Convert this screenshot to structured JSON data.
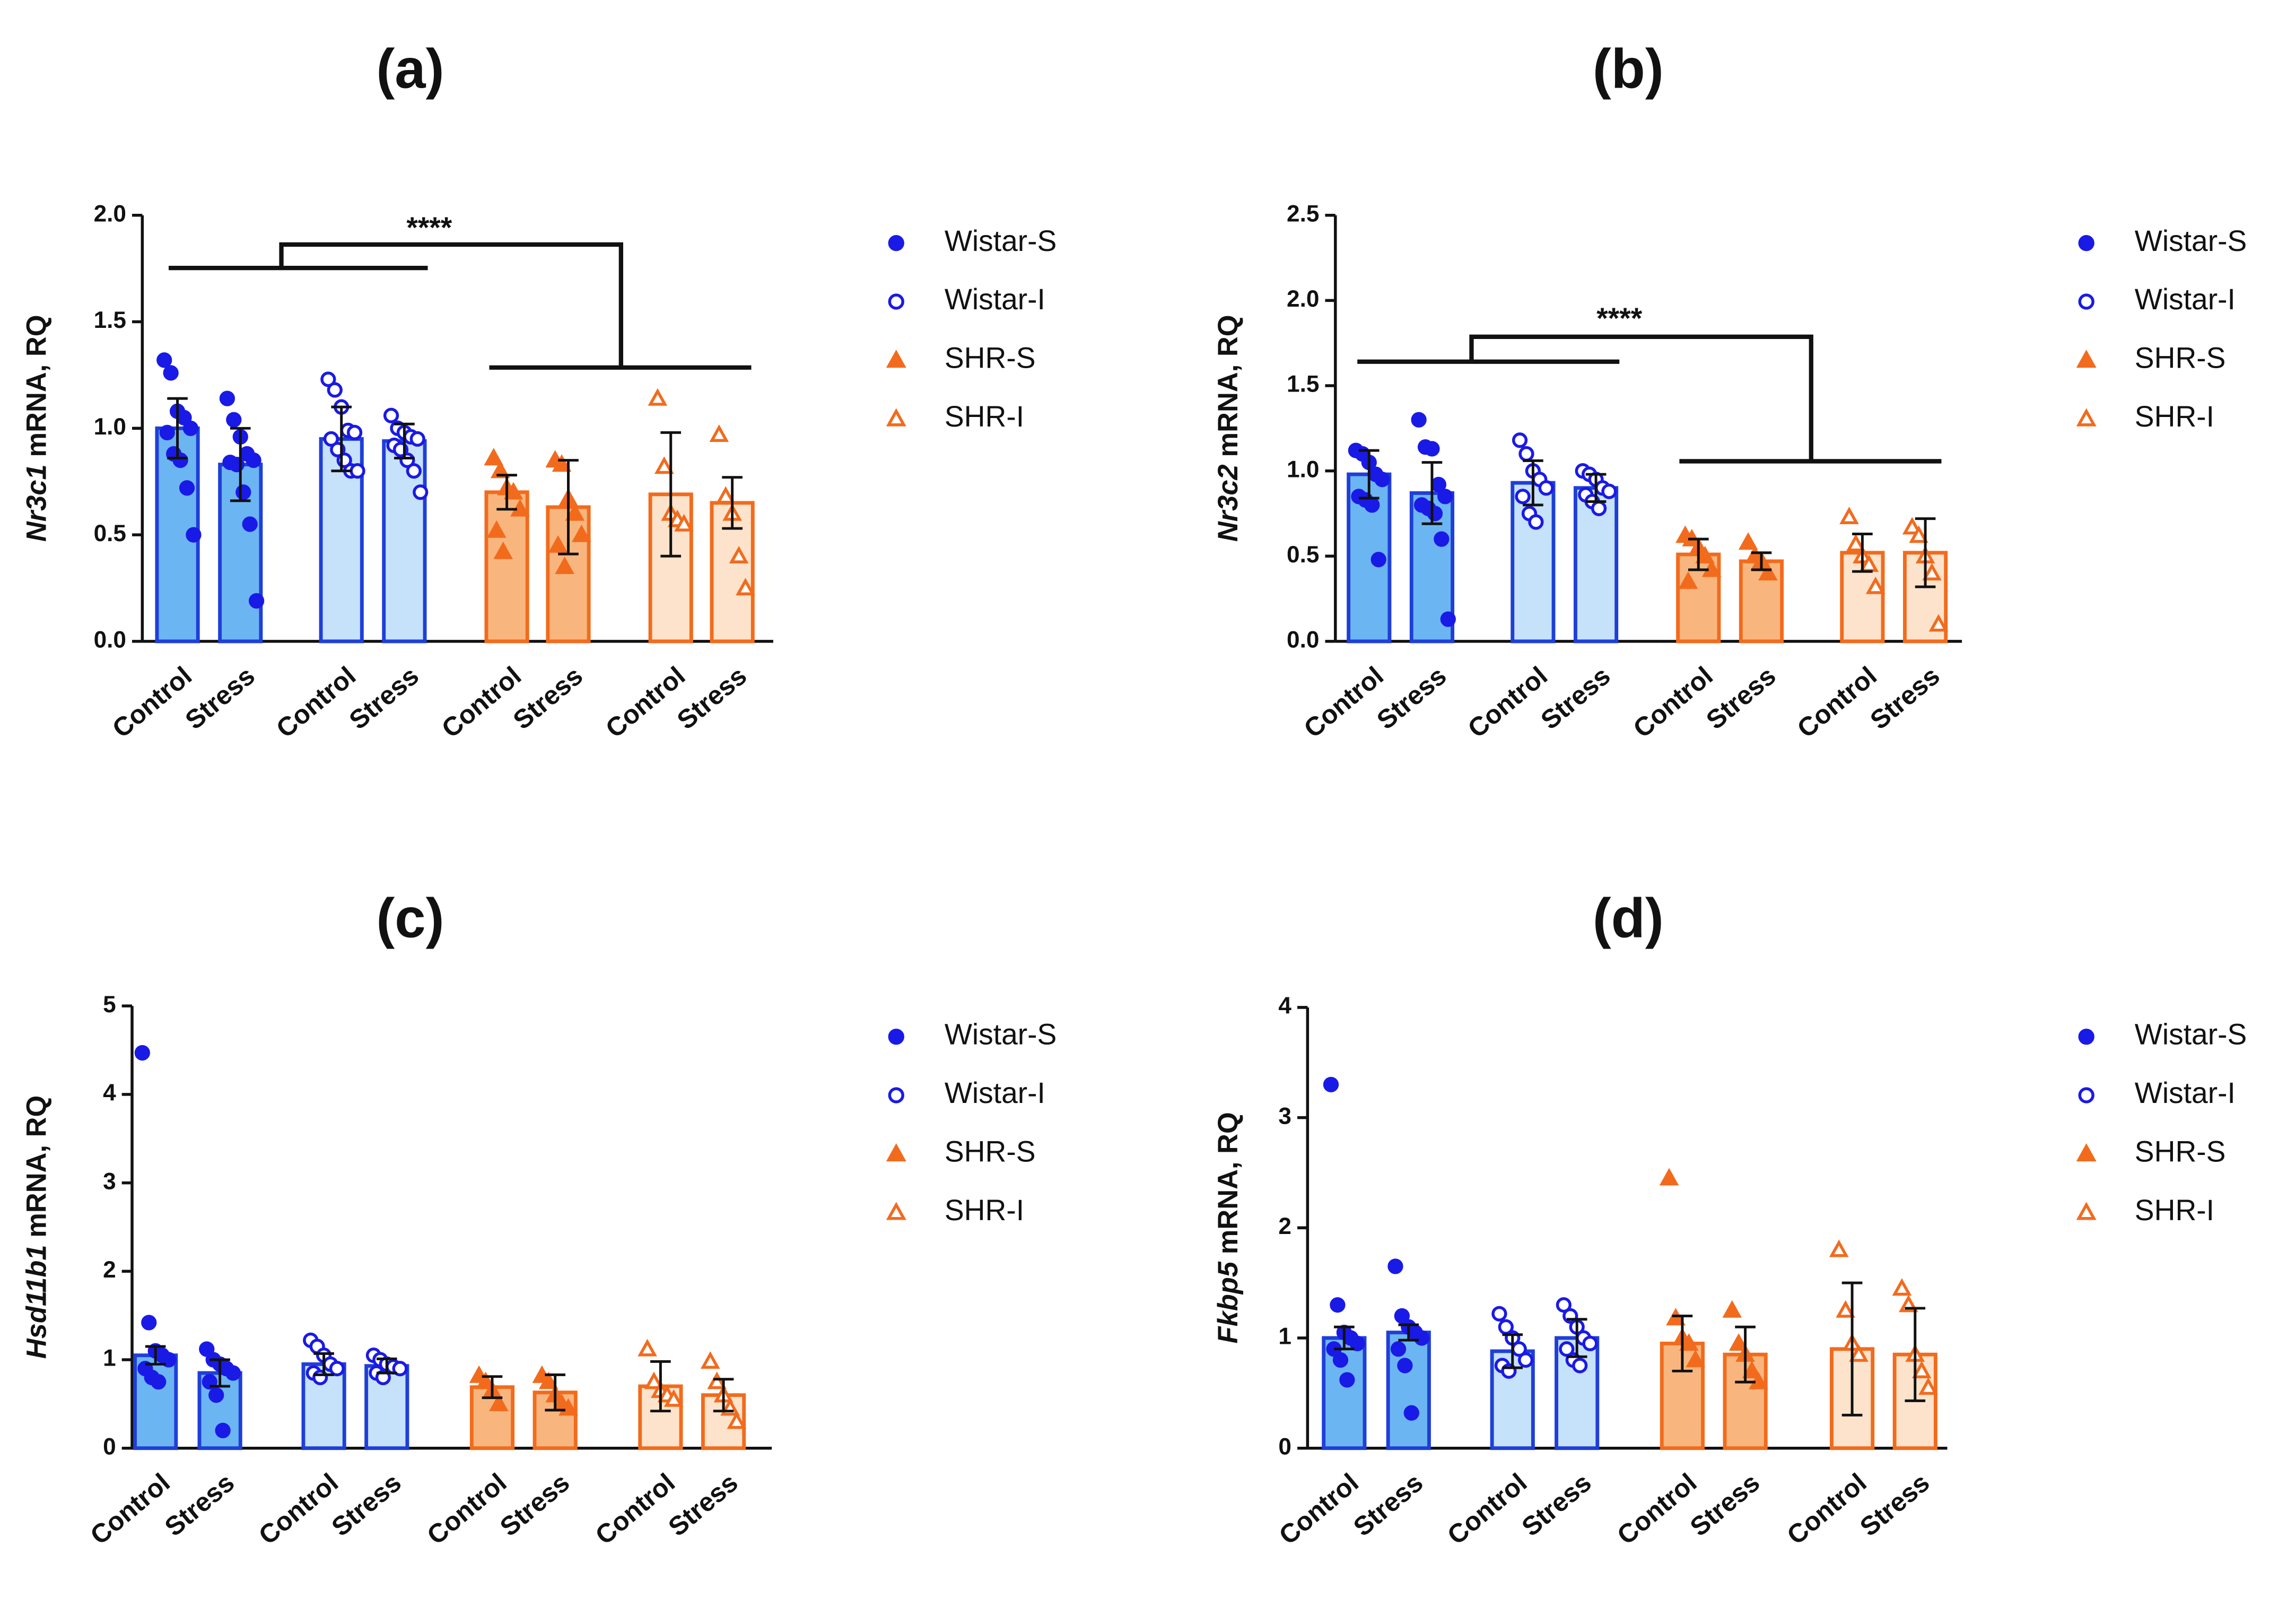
{
  "chart_data": [
    {
      "type": "bar",
      "title": "(a)",
      "ylabel": [
        "Nr3c1",
        "mRNA, RQ"
      ],
      "annotation": "****",
      "categories": [
        "Control",
        "Stress"
      ],
      "ylim": [
        0,
        2
      ],
      "yticks": [
        {
          "value": 0,
          "label": "0.0"
        },
        0.5,
        {
          "value": 1,
          "label": "1.0"
        },
        1.5,
        {
          "value": 2,
          "label": "2.0"
        }
      ],
      "series": [
        {
          "name": "Wistar-S",
          "color": "#1a1ae6",
          "fill": "#6cb5f3",
          "marker": "circle",
          "filled": true,
          "values": [
            1.0,
            0.83
          ],
          "errors": [
            0.14,
            0.17
          ],
          "points": [
            [
              1.32,
              1.26,
              1.08,
              1.05,
              1.0,
              0.98,
              0.88,
              0.85,
              0.72,
              0.5
            ],
            [
              1.14,
              1.04,
              0.96,
              0.88,
              0.85,
              0.84,
              0.83,
              0.7,
              0.55,
              0.19
            ]
          ]
        },
        {
          "name": "Wistar-I",
          "color": "#1a1ae6",
          "fill": "#c6e1fa",
          "marker": "circle",
          "filled": false,
          "values": [
            0.95,
            0.94
          ],
          "errors": [
            0.15,
            0.08
          ],
          "points": [
            [
              1.23,
              1.18,
              1.1,
              0.99,
              0.98,
              0.95,
              0.9,
              0.85,
              0.8,
              0.8
            ],
            [
              1.06,
              1.0,
              0.98,
              0.96,
              0.95,
              0.92,
              0.9,
              0.85,
              0.8,
              0.7
            ]
          ]
        },
        {
          "name": "SHR-S",
          "color": "#f26b1d",
          "fill": "#f8b67e",
          "marker": "triangle",
          "filled": true,
          "values": [
            0.7,
            0.63
          ],
          "errors": [
            0.08,
            0.22
          ],
          "points": [
            [
              0.86,
              0.8,
              0.72,
              0.7,
              0.62,
              0.52,
              0.42
            ],
            [
              0.85,
              0.83,
              0.67,
              0.6,
              0.5,
              0.45,
              0.35
            ]
          ]
        },
        {
          "name": "SHR-I",
          "color": "#f26b1d",
          "fill": "#fde3cb",
          "marker": "triangle",
          "filled": false,
          "values": [
            0.69,
            0.65
          ],
          "errors": [
            0.29,
            0.12
          ],
          "points": [
            [
              1.14,
              0.82,
              0.6,
              0.57,
              0.55
            ],
            [
              0.97,
              0.68,
              0.6,
              0.4,
              0.25
            ]
          ]
        }
      ]
    },
    {
      "type": "bar",
      "title": "(b)",
      "ylabel": [
        "Nr3c2",
        "mRNA, RQ"
      ],
      "annotation": "****",
      "categories": [
        "Control",
        "Stress"
      ],
      "ylim": [
        0,
        2.5
      ],
      "yticks": [
        {
          "value": 0,
          "label": "0.0"
        },
        0.5,
        {
          "value": 1,
          "label": "1.0"
        },
        1.5,
        {
          "value": 2,
          "label": "2.0"
        },
        2.5
      ],
      "series": [
        {
          "name": "Wistar-S",
          "color": "#1a1ae6",
          "fill": "#6cb5f3",
          "marker": "circle",
          "filled": true,
          "values": [
            0.98,
            0.87
          ],
          "errors": [
            0.14,
            0.18
          ],
          "points": [
            [
              1.12,
              1.1,
              1.05,
              0.98,
              0.95,
              0.85,
              0.83,
              0.8,
              0.48
            ],
            [
              1.3,
              1.14,
              1.13,
              0.92,
              0.85,
              0.8,
              0.78,
              0.75,
              0.6,
              0.13
            ]
          ]
        },
        {
          "name": "Wistar-I",
          "color": "#1a1ae6",
          "fill": "#c6e1fa",
          "marker": "circle",
          "filled": false,
          "values": [
            0.93,
            0.9
          ],
          "errors": [
            0.13,
            0.08
          ],
          "points": [
            [
              1.18,
              1.1,
              1.0,
              0.95,
              0.9,
              0.85,
              0.75,
              0.7
            ],
            [
              1.0,
              0.98,
              0.95,
              0.9,
              0.88,
              0.86,
              0.82,
              0.78
            ]
          ]
        },
        {
          "name": "SHR-S",
          "color": "#f26b1d",
          "fill": "#f8b67e",
          "marker": "triangle",
          "filled": true,
          "values": [
            0.51,
            0.47
          ],
          "errors": [
            0.09,
            0.05
          ],
          "points": [
            [
              0.62,
              0.6,
              0.55,
              0.5,
              0.42,
              0.35
            ],
            [
              0.58,
              0.5,
              0.47,
              0.4
            ]
          ]
        },
        {
          "name": "SHR-I",
          "color": "#f26b1d",
          "fill": "#fde3cb",
          "marker": "triangle",
          "filled": false,
          "values": [
            0.52,
            0.52
          ],
          "errors": [
            0.11,
            0.2
          ],
          "points": [
            [
              0.73,
              0.57,
              0.5,
              0.45,
              0.32
            ],
            [
              0.67,
              0.62,
              0.5,
              0.4,
              0.1
            ]
          ]
        }
      ]
    },
    {
      "type": "bar",
      "title": "(c)",
      "ylabel": [
        "Hsd11b1",
        "mRNA, RQ"
      ],
      "categories": [
        "Control",
        "Stress"
      ],
      "ylim": [
        0,
        5
      ],
      "yticks": [
        0,
        1,
        2,
        3,
        4,
        5
      ],
      "series": [
        {
          "name": "Wistar-S",
          "color": "#1a1ae6",
          "fill": "#6cb5f3",
          "marker": "circle",
          "filled": true,
          "values": [
            1.05,
            0.85
          ],
          "errors": [
            0.1,
            0.15
          ],
          "points": [
            [
              4.47,
              1.42,
              1.1,
              1.05,
              1.0,
              0.9,
              0.8,
              0.75
            ],
            [
              1.12,
              1.0,
              0.95,
              0.9,
              0.85,
              0.75,
              0.6,
              0.2
            ]
          ]
        },
        {
          "name": "Wistar-I",
          "color": "#1a1ae6",
          "fill": "#c6e1fa",
          "marker": "circle",
          "filled": false,
          "values": [
            0.95,
            0.93
          ],
          "errors": [
            0.12,
            0.08
          ],
          "points": [
            [
              1.22,
              1.15,
              1.05,
              0.95,
              0.9,
              0.85,
              0.8
            ],
            [
              1.05,
              1.0,
              0.95,
              0.92,
              0.9,
              0.85,
              0.8
            ]
          ]
        },
        {
          "name": "SHR-S",
          "color": "#f26b1d",
          "fill": "#f8b67e",
          "marker": "triangle",
          "filled": true,
          "values": [
            0.69,
            0.63
          ],
          "errors": [
            0.12,
            0.2
          ],
          "points": [
            [
              0.82,
              0.75,
              0.65,
              0.5
            ],
            [
              0.82,
              0.75,
              0.6,
              0.5,
              0.45
            ]
          ]
        },
        {
          "name": "SHR-I",
          "color": "#f26b1d",
          "fill": "#fde3cb",
          "marker": "triangle",
          "filled": false,
          "values": [
            0.7,
            0.6
          ],
          "errors": [
            0.28,
            0.18
          ],
          "points": [
            [
              1.12,
              0.75,
              0.65,
              0.6,
              0.55
            ],
            [
              0.98,
              0.75,
              0.6,
              0.45,
              0.3
            ]
          ]
        }
      ]
    },
    {
      "type": "bar",
      "title": "(d)",
      "ylabel": [
        "Fkbp5",
        "mRNA, RQ"
      ],
      "categories": [
        "Control",
        "Stress"
      ],
      "ylim": [
        0,
        4
      ],
      "yticks": [
        0,
        1,
        2,
        3,
        4
      ],
      "series": [
        {
          "name": "Wistar-S",
          "color": "#1a1ae6",
          "fill": "#6cb5f3",
          "marker": "circle",
          "filled": true,
          "values": [
            1.0,
            1.05
          ],
          "errors": [
            0.1,
            0.07
          ],
          "points": [
            [
              3.3,
              1.3,
              1.05,
              1.0,
              0.95,
              0.9,
              0.8,
              0.62
            ],
            [
              1.65,
              1.2,
              1.1,
              1.05,
              1.0,
              0.9,
              0.75,
              0.32
            ]
          ]
        },
        {
          "name": "Wistar-I",
          "color": "#1a1ae6",
          "fill": "#c6e1fa",
          "marker": "circle",
          "filled": false,
          "values": [
            0.88,
            1.0
          ],
          "errors": [
            0.15,
            0.17
          ],
          "points": [
            [
              1.22,
              1.1,
              1.0,
              0.9,
              0.8,
              0.75,
              0.7
            ],
            [
              1.3,
              1.2,
              1.1,
              1.0,
              0.95,
              0.9,
              0.8,
              0.75
            ]
          ]
        },
        {
          "name": "SHR-S",
          "color": "#f26b1d",
          "fill": "#f8b67e",
          "marker": "triangle",
          "filled": true,
          "values": [
            0.95,
            0.85
          ],
          "errors": [
            0.25,
            0.25
          ],
          "points": [
            [
              2.45,
              1.18,
              1.0,
              0.95,
              0.8
            ],
            [
              1.25,
              0.95,
              0.85,
              0.7,
              0.6
            ]
          ]
        },
        {
          "name": "SHR-I",
          "color": "#f26b1d",
          "fill": "#fde3cb",
          "marker": "triangle",
          "filled": false,
          "values": [
            0.9,
            0.85
          ],
          "errors": [
            0.6,
            0.42
          ],
          "points": [
            [
              1.8,
              1.25,
              0.95,
              0.85
            ],
            [
              1.45,
              1.3,
              0.85,
              0.7,
              0.55
            ]
          ]
        }
      ]
    }
  ]
}
